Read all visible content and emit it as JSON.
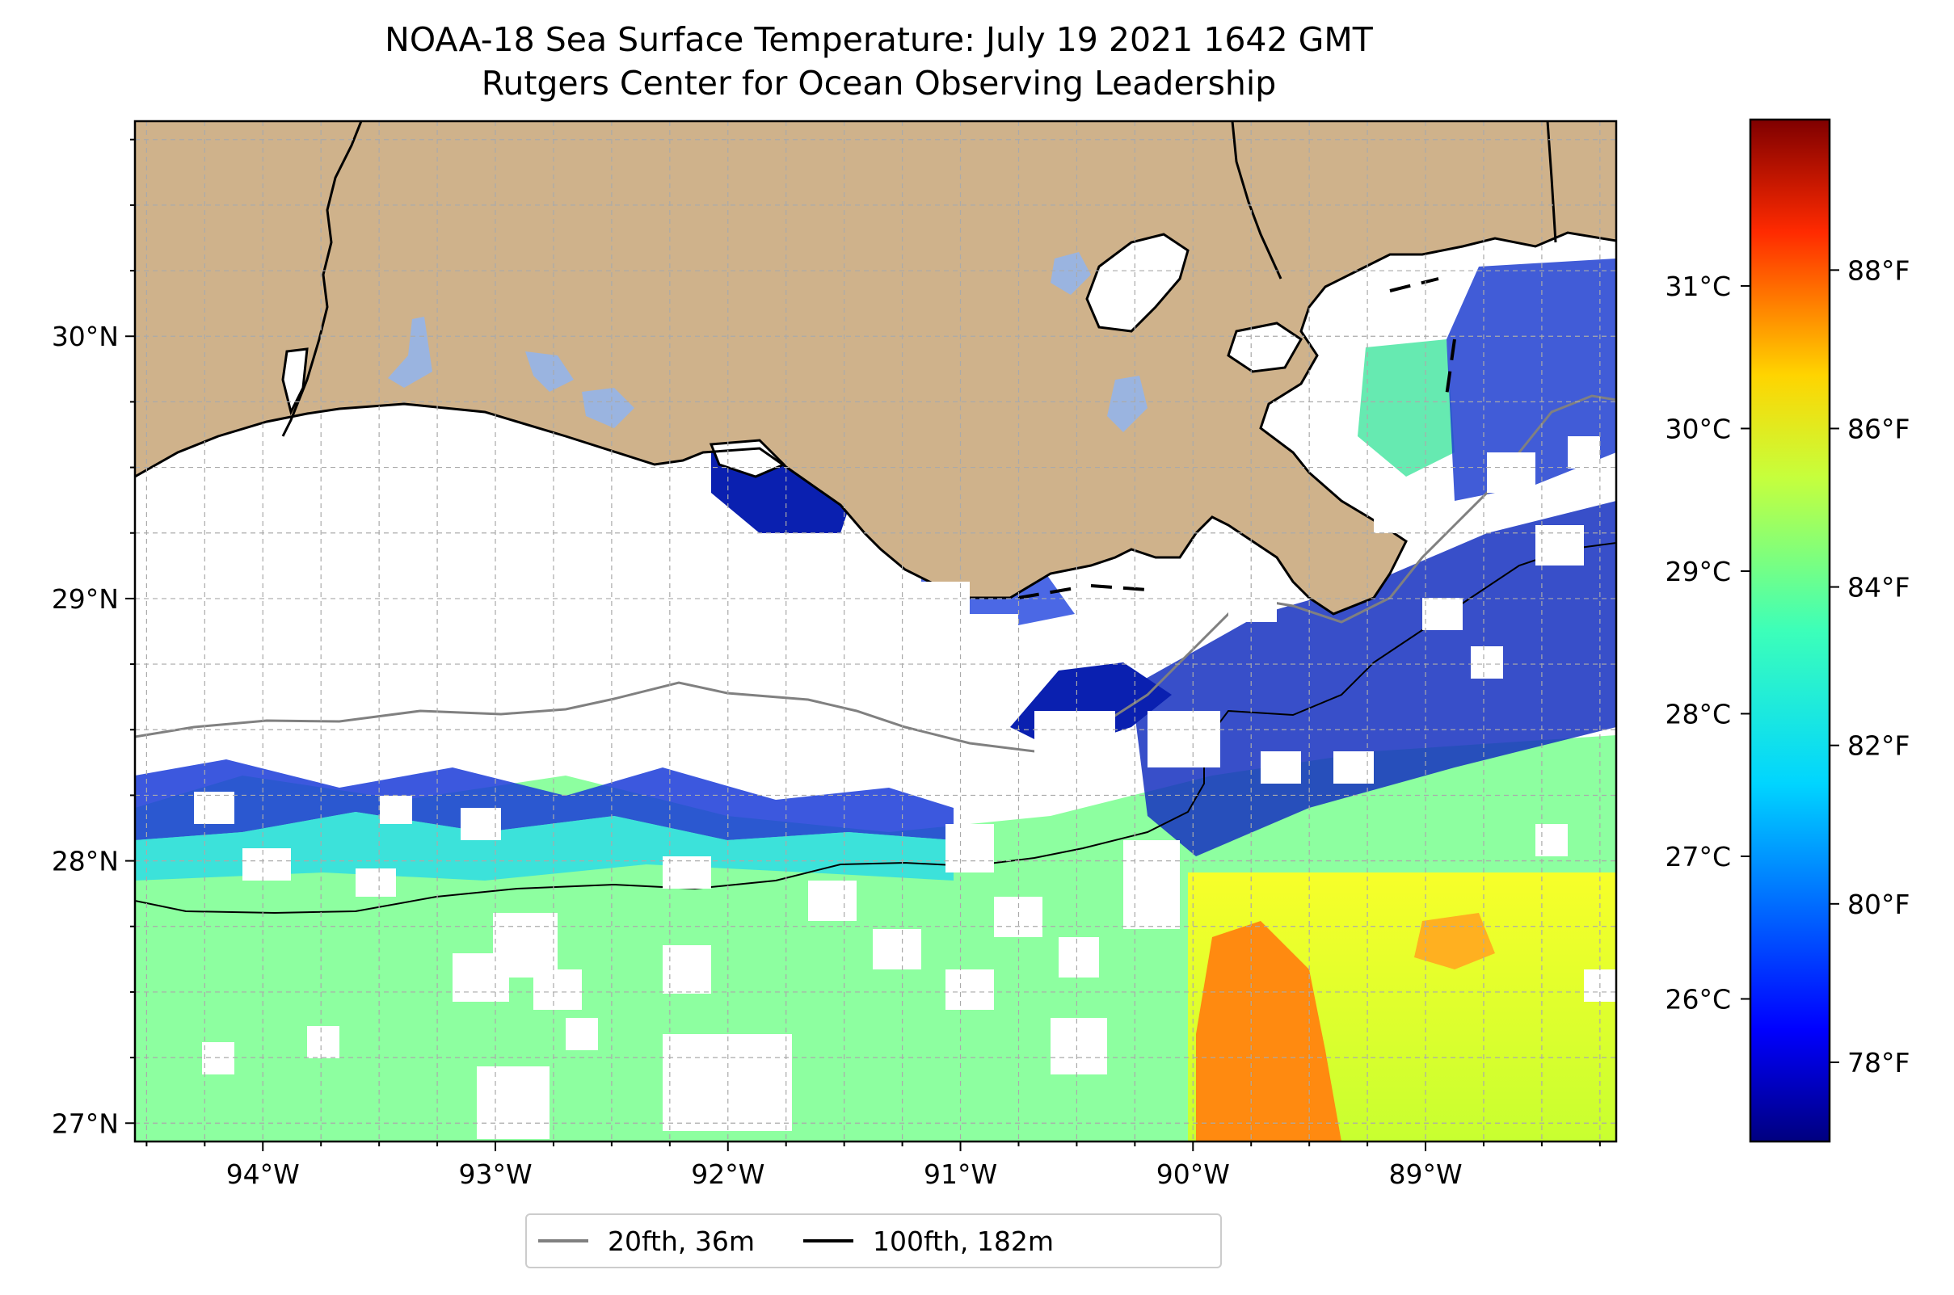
{
  "title": {
    "line1": "NOAA-18 Sea Surface Temperature: July 19 2021 1642 GMT",
    "line2": "Rutgers Center for Ocean Observing Leadership"
  },
  "map": {
    "lon_range": [
      -94.55,
      -88.18
    ],
    "lat_range": [
      26.93,
      30.82
    ],
    "x_ticks": [
      {
        "lon": -94,
        "label": "94°W"
      },
      {
        "lon": -93,
        "label": "93°W"
      },
      {
        "lon": -92,
        "label": "92°W"
      },
      {
        "lon": -91,
        "label": "91°W"
      },
      {
        "lon": -90,
        "label": "90°W"
      },
      {
        "lon": -89,
        "label": "89°W"
      }
    ],
    "y_ticks": [
      {
        "lat": 27,
        "label": "27°N"
      },
      {
        "lat": 28,
        "label": "28°N"
      },
      {
        "lat": 29,
        "label": "29°N"
      },
      {
        "lat": 30,
        "label": "30°N"
      }
    ],
    "grid": true,
    "land_color": "#cfb28b",
    "water_body_color": "#9ab4e0",
    "isobaths": [
      {
        "label": "20fth, 36m",
        "color": "#808080"
      },
      {
        "label": "100fth, 182m",
        "color": "#000000"
      }
    ]
  },
  "colorbar": {
    "colormap": "jet",
    "celsius_ticks": [
      {
        "value": 26,
        "label": "26°C"
      },
      {
        "value": 27,
        "label": "27°C"
      },
      {
        "value": 28,
        "label": "28°C"
      },
      {
        "value": 29,
        "label": "29°C"
      },
      {
        "value": 30,
        "label": "30°C"
      },
      {
        "value": 31,
        "label": "31°C"
      }
    ],
    "fahrenheit_ticks": [
      {
        "value": 78,
        "label": "78°F"
      },
      {
        "value": 80,
        "label": "80°F"
      },
      {
        "value": 82,
        "label": "82°F"
      },
      {
        "value": 84,
        "label": "84°F"
      },
      {
        "value": 86,
        "label": "86°F"
      },
      {
        "value": 88,
        "label": "88°F"
      }
    ]
  },
  "legend": {
    "items": [
      {
        "label": "20fth, 36m",
        "color": "#808080"
      },
      {
        "label": "100fth, 182m",
        "color": "#000000"
      }
    ],
    "placement": "bottom-center"
  }
}
